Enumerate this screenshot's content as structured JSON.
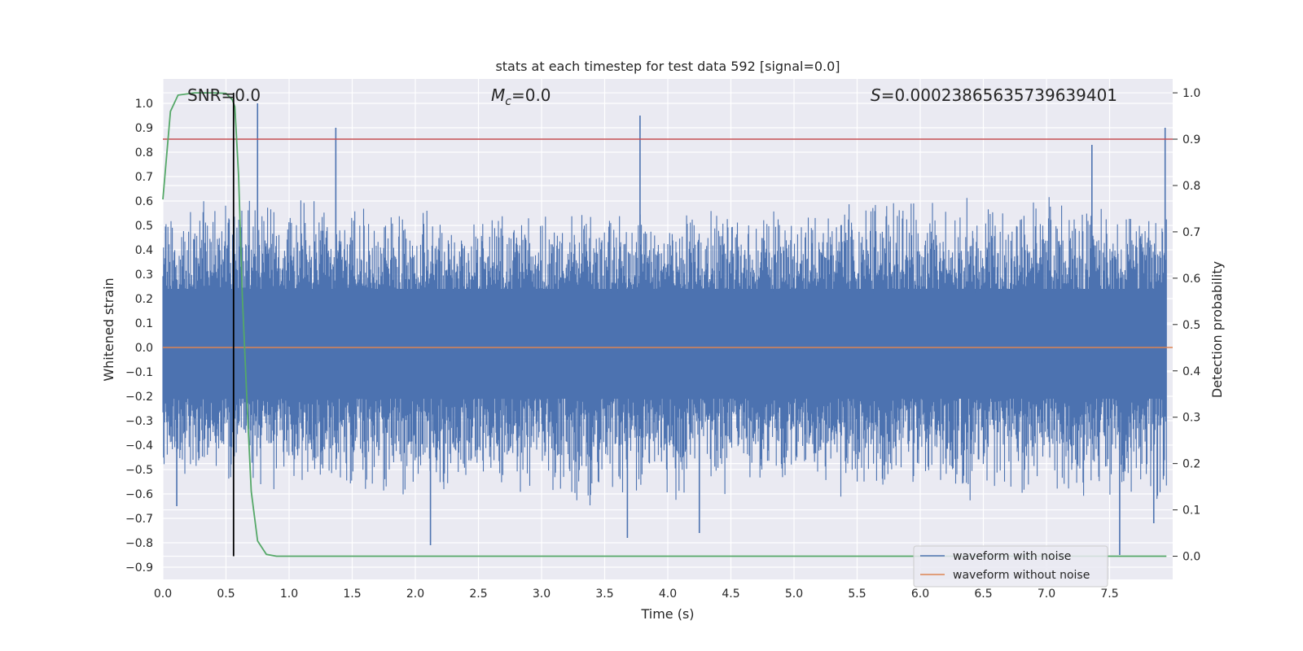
{
  "chart_data": {
    "type": "line",
    "title": "stats at each timestep for test data 592 [signal=0.0]",
    "xlabel": "Time (s)",
    "ylabel": "Whitened strain",
    "y2label": "Detection probability",
    "xlim": [
      0.0,
      8.0
    ],
    "ylim": [
      -0.95,
      1.1
    ],
    "y2lim": [
      -0.05,
      1.03
    ],
    "xticks": [
      0.0,
      0.5,
      1.0,
      1.5,
      2.0,
      2.5,
      3.0,
      3.5,
      4.0,
      4.5,
      5.0,
      5.5,
      6.0,
      6.5,
      7.0,
      7.5
    ],
    "xtick_labels": [
      "0.0",
      "0.5",
      "1.0",
      "1.5",
      "2.0",
      "2.5",
      "3.0",
      "3.5",
      "4.0",
      "4.5",
      "5.0",
      "5.5",
      "6.0",
      "6.5",
      "7.0",
      "7.5"
    ],
    "yticks": [
      1.0,
      0.9,
      0.8,
      0.7,
      0.6,
      0.5,
      0.4,
      0.3,
      0.2,
      0.1,
      0.0,
      -0.1,
      -0.2,
      -0.3,
      -0.4,
      -0.5,
      -0.6,
      -0.7,
      -0.8,
      -0.9
    ],
    "ytick_labels": [
      "1.0",
      "0.9",
      "0.8",
      "0.7",
      "0.6",
      "0.5",
      "0.4",
      "0.3",
      "0.2",
      "0.1",
      "0.0",
      "−0.1",
      "−0.2",
      "−0.3",
      "−0.4",
      "−0.5",
      "−0.6",
      "−0.7",
      "−0.8",
      "−0.9"
    ],
    "y2ticks": [
      1.0,
      0.9,
      0.8,
      0.7,
      0.6,
      0.5,
      0.4,
      0.3,
      0.2,
      0.1,
      0.0
    ],
    "y2tick_labels": [
      "1.0",
      "0.9",
      "0.8",
      "0.7",
      "0.6",
      "0.5",
      "0.4",
      "0.3",
      "0.2",
      "0.1",
      "0.0"
    ],
    "grid": true,
    "legend_position": "lower-right",
    "annotations": {
      "snr": "SNR=0.0",
      "mc_symbol": "M",
      "mc_subscript": "c",
      "mc_value": "=0.0",
      "s_symbol": "S",
      "s_value": "=0.00023865635739639401"
    },
    "series": [
      {
        "name": "waveform with noise",
        "axis": "left",
        "color": "#4c72b0",
        "description_note": "dense noise signal",
        "envelope": {
          "x": [
            0.0,
            0.5,
            1.0,
            1.5,
            2.0,
            2.5,
            3.0,
            3.5,
            4.0,
            4.5,
            5.0,
            5.5,
            6.0,
            6.5,
            7.0,
            7.5,
            7.95
          ],
          "upper": [
            0.6,
            0.65,
            0.63,
            0.6,
            0.58,
            0.57,
            0.6,
            0.6,
            0.6,
            0.62,
            0.58,
            0.65,
            0.62,
            0.63,
            0.64,
            0.63,
            0.62
          ],
          "lower": [
            -0.55,
            -0.6,
            -0.62,
            -0.6,
            -0.65,
            -0.62,
            -0.67,
            -0.66,
            -0.68,
            -0.62,
            -0.6,
            -0.62,
            -0.62,
            -0.64,
            -0.64,
            -0.65,
            -0.65
          ]
        },
        "spikes": [
          {
            "x": 0.75,
            "y": 1.0
          },
          {
            "x": 1.37,
            "y": 0.9
          },
          {
            "x": 3.78,
            "y": 0.95
          },
          {
            "x": 7.36,
            "y": 0.83
          },
          {
            "x": 7.94,
            "y": 0.9
          },
          {
            "x": 0.11,
            "y": -0.65
          },
          {
            "x": 2.12,
            "y": -0.81
          },
          {
            "x": 3.68,
            "y": -0.78
          },
          {
            "x": 4.25,
            "y": -0.76
          },
          {
            "x": 7.58,
            "y": -0.85
          },
          {
            "x": 7.85,
            "y": -0.72
          }
        ]
      },
      {
        "name": "waveform without noise",
        "axis": "left",
        "color": "#dd8452",
        "x": [
          0.0,
          8.0
        ],
        "y": [
          0.0,
          0.0
        ]
      },
      {
        "name": "",
        "axis": "right",
        "color": "#55a868",
        "x": [
          0.0,
          0.06,
          0.12,
          0.25,
          0.4,
          0.5,
          0.55,
          0.57,
          0.6,
          0.63,
          0.67,
          0.7,
          0.75,
          0.82,
          0.9,
          2.0,
          4.0,
          6.0,
          7.95
        ],
        "y": [
          0.77,
          0.96,
          0.995,
          1.0,
          1.0,
          0.999,
          0.985,
          0.97,
          0.82,
          0.56,
          0.31,
          0.14,
          0.033,
          0.004,
          0.0,
          0.0,
          0.0,
          0.0,
          0.0
        ]
      },
      {
        "name": "",
        "axis": "right",
        "color": "#c44e52",
        "x": [
          0.0,
          8.0
        ],
        "y": [
          0.9,
          0.9
        ]
      },
      {
        "name": "",
        "axis": "right",
        "color": "#000000",
        "type": "vline",
        "x": [
          0.56,
          0.56
        ],
        "y": [
          0.0,
          1.0
        ]
      }
    ]
  }
}
